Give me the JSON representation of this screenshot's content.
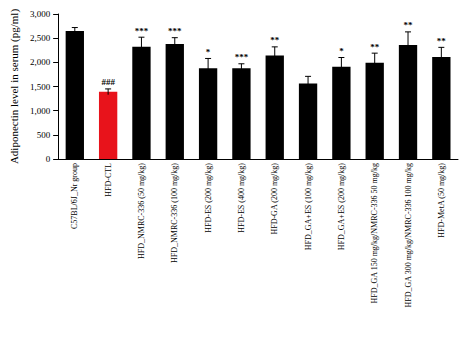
{
  "chart_data": {
    "type": "bar",
    "y_label": "Adiponectin level in serum (pg/ml)",
    "categories": [
      "C57BL/6J_Nr group",
      "HFD-CTL",
      "HFD_NMRC-336 (50 mg/kg)",
      "HFD_NMRC-336 (100 mg/kg)",
      "HFD-ES (200 mg/kg)",
      "HFD-ES (400 mg/kg)",
      "HFD-GA (200 mg/kg)",
      "HFD_GA+ES (100 mg/kg)",
      "HFD_GA+ES (200 mg/kg)",
      "HFD_GA 150 mg/kg/NMRC-336 50 mg/kg",
      "HFD_GA 300 mg/kg/NMRC-336 100 mg/kg",
      "HFD-MetA (50 mg/kg)"
    ],
    "values": [
      2650,
      1390,
      2320,
      2380,
      1880,
      1880,
      2140,
      1560,
      1910,
      1990,
      2360,
      2110
    ],
    "errors": [
      70,
      60,
      200,
      130,
      200,
      90,
      180,
      150,
      190,
      200,
      270,
      200
    ],
    "significance": [
      "",
      "###",
      "***",
      "***",
      "*",
      "***",
      "**",
      null,
      "*",
      "**",
      "**",
      "**"
    ],
    "colors": [
      "#000000",
      "#e8131b",
      "#000000",
      "#000000",
      "#000000",
      "#000000",
      "#000000",
      "#000000",
      "#000000",
      "#000000",
      "#000000",
      "#000000"
    ],
    "ylim": [
      0,
      3000
    ],
    "yticks": [
      0,
      500,
      1000,
      1500,
      2000,
      2500,
      3000
    ],
    "grid": false
  }
}
